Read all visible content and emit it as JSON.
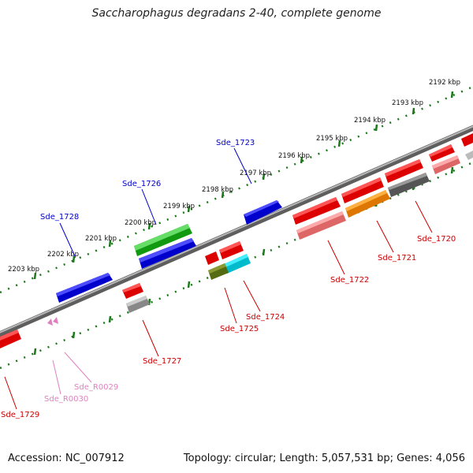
{
  "title": "Saccharophagus degradans 2-40, complete genome",
  "footer": {
    "accession": "Accession: NC_007912",
    "summary": "Topology: circular; Length: 5,057,531 bp; Genes: 4,056"
  },
  "colors": {
    "backbone": "#8a8a8a",
    "ruler": "#1a7a1a",
    "forward_label": "#0000cc",
    "reverse_label": "#cc0000",
    "rna_label": "#e080c0"
  },
  "ruler_labels": [
    {
      "text": "2192 kbp"
    },
    {
      "text": "2193 kbp"
    },
    {
      "text": "2194 kbp"
    },
    {
      "text": "2195 kbp"
    },
    {
      "text": "2196 kbp"
    },
    {
      "text": "2197 kbp"
    },
    {
      "text": "2198 kbp"
    },
    {
      "text": "2199 kbp"
    },
    {
      "text": "2200 kbp"
    },
    {
      "text": "2201 kbp"
    },
    {
      "text": "2202 kbp"
    },
    {
      "text": "2203 kbp"
    }
  ],
  "forward_labels": [
    {
      "text": "Sde_1723"
    },
    {
      "text": "Sde_1726"
    },
    {
      "text": "Sde_1728"
    }
  ],
  "reverse_labels": [
    {
      "text": "Sde_1720"
    },
    {
      "text": "Sde_1721"
    },
    {
      "text": "Sde_1722"
    },
    {
      "text": "Sde_1724"
    },
    {
      "text": "Sde_1725"
    },
    {
      "text": "Sde_1727"
    },
    {
      "text": "Sde_1729"
    }
  ],
  "rna_labels": [
    {
      "text": "Sde_R0029"
    },
    {
      "text": "Sde_R0030"
    }
  ]
}
